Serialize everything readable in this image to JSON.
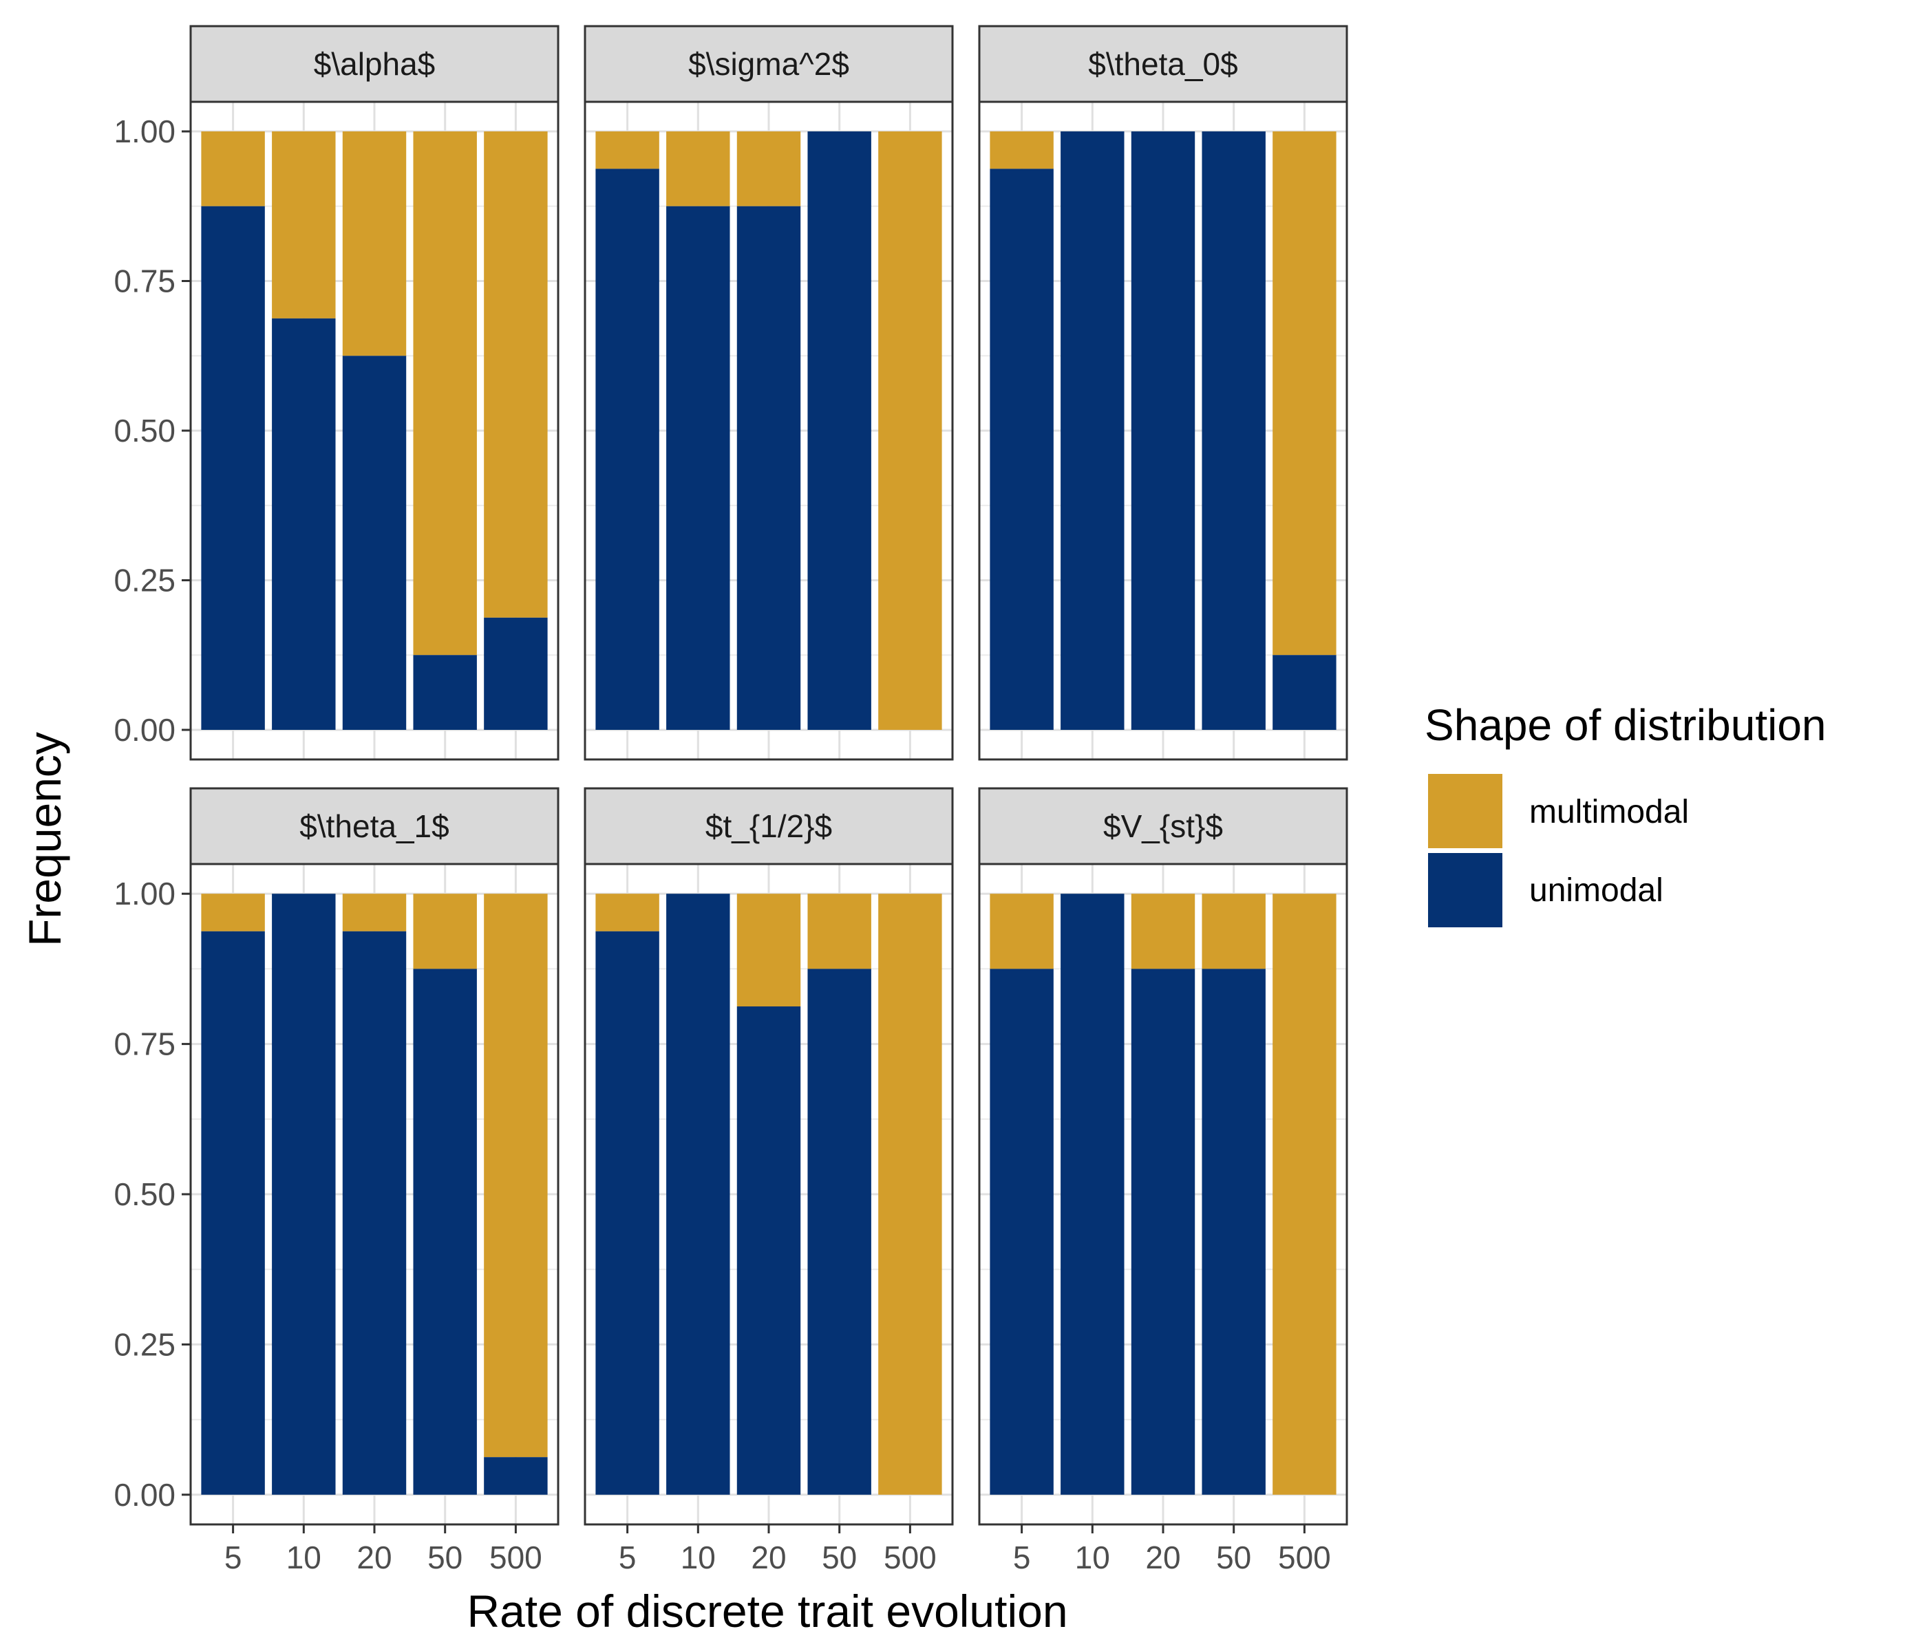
{
  "chart_data": {
    "type": "bar",
    "stacked": true,
    "facets": [
      "$\\alpha$",
      "$\\sigma^2$",
      "$\\theta_0$",
      "$\\theta_1$",
      "$t_{1/2}$",
      "$V_{st}$"
    ],
    "categories": [
      "5",
      "10",
      "20",
      "50",
      "500"
    ],
    "xlabel": "Rate of discrete trait evolution",
    "ylabel": "Frequency",
    "ylim": [
      0,
      1
    ],
    "yticks": [
      "0.00",
      "0.25",
      "0.50",
      "0.75",
      "1.00"
    ],
    "grid": true,
    "legend": {
      "title": "Shape of distribution",
      "position": "right",
      "entries": [
        {
          "name": "multimodal",
          "color": "#D39E2B"
        },
        {
          "name": "unimodal",
          "color": "#053273"
        }
      ]
    },
    "panels": [
      {
        "facet": "$\\alpha$",
        "unimodal": [
          0.875,
          0.6875,
          0.625,
          0.125,
          0.1875
        ]
      },
      {
        "facet": "$\\sigma^2$",
        "unimodal": [
          0.9375,
          0.875,
          0.875,
          1.0,
          0.0
        ]
      },
      {
        "facet": "$\\theta_0$",
        "unimodal": [
          0.9375,
          1.0,
          1.0,
          1.0,
          0.125
        ]
      },
      {
        "facet": "$\\theta_1$",
        "unimodal": [
          0.9375,
          1.0,
          0.9375,
          0.875,
          0.0625
        ]
      },
      {
        "facet": "$t_{1/2}$",
        "unimodal": [
          0.9375,
          1.0,
          0.8125,
          0.875,
          0.0
        ]
      },
      {
        "facet": "$V_{st}$",
        "unimodal": [
          0.875,
          1.0,
          0.875,
          0.875,
          0.0
        ]
      }
    ]
  }
}
